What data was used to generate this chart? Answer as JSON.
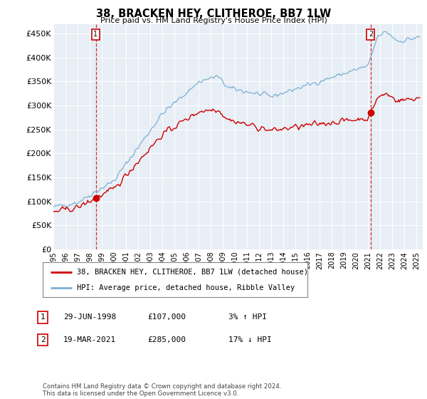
{
  "title": "38, BRACKEN HEY, CLITHEROE, BB7 1LW",
  "subtitle": "Price paid vs. HM Land Registry's House Price Index (HPI)",
  "ylabel_ticks": [
    "£0",
    "£50K",
    "£100K",
    "£150K",
    "£200K",
    "£250K",
    "£300K",
    "£350K",
    "£400K",
    "£450K"
  ],
  "ytick_values": [
    0,
    50000,
    100000,
    150000,
    200000,
    250000,
    300000,
    350000,
    400000,
    450000
  ],
  "ylim": [
    0,
    470000
  ],
  "xlim_start": 1995.0,
  "xlim_end": 2025.5,
  "hpi_color": "#7bafd4",
  "price_color": "#cc0000",
  "dashed_color": "#cc0000",
  "marker1_date": 1998.497,
  "marker1_price": 107000,
  "marker2_date": 2021.206,
  "marker2_price": 285000,
  "legend_property": "38, BRACKEN HEY, CLITHEROE, BB7 1LW (detached house)",
  "legend_hpi": "HPI: Average price, detached house, Ribble Valley",
  "table_row1": [
    "1",
    "29-JUN-1998",
    "£107,000",
    "3% ↑ HPI"
  ],
  "table_row2": [
    "2",
    "19-MAR-2021",
    "£285,000",
    "17% ↓ HPI"
  ],
  "footer": "Contains HM Land Registry data © Crown copyright and database right 2024.\nThis data is licensed under the Open Government Licence v3.0.",
  "background_color": "#ffffff",
  "plot_bg_color": "#e8eef5",
  "grid_color": "#ffffff",
  "xtick_years": [
    1995,
    1996,
    1997,
    1998,
    1999,
    2000,
    2001,
    2002,
    2003,
    2004,
    2005,
    2006,
    2007,
    2008,
    2009,
    2010,
    2011,
    2012,
    2013,
    2014,
    2015,
    2016,
    2017,
    2018,
    2019,
    2020,
    2021,
    2022,
    2023,
    2024,
    2025
  ]
}
